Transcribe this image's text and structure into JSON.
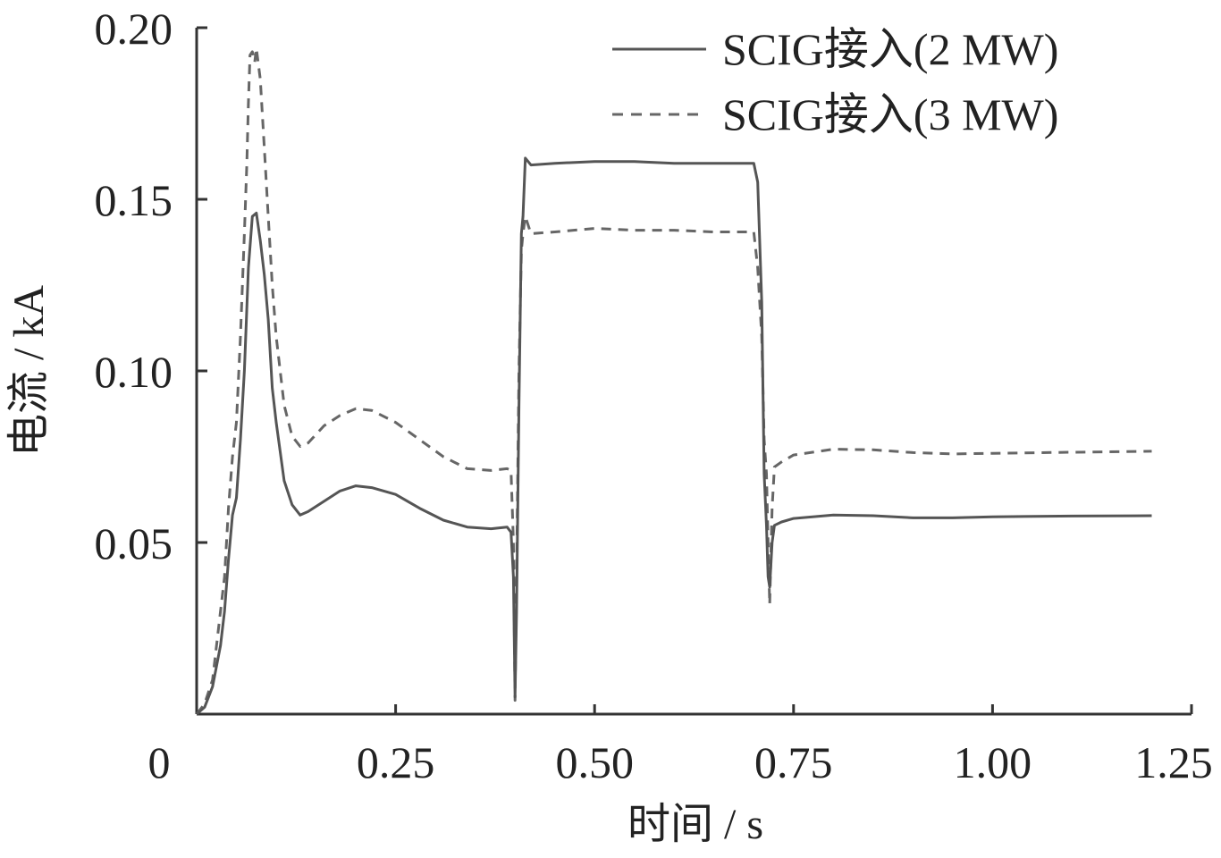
{
  "chart_data": {
    "type": "line",
    "xlabel": "时间 / s",
    "ylabel": "电流 / kA",
    "xlim": [
      0,
      1.25
    ],
    "ylim": [
      0,
      0.2
    ],
    "xticks": [
      0,
      0.25,
      0.5,
      0.75,
      1.0,
      1.25
    ],
    "xtick_labels": [
      "0",
      "0.25",
      "0.50",
      "0.75",
      "1.00",
      "1.25"
    ],
    "yticks": [
      0.05,
      0.1,
      0.15,
      0.2
    ],
    "ytick_labels": [
      "0.05",
      "0.10",
      "0.15",
      "0.20"
    ],
    "grid": false,
    "legend_position": "top-right",
    "series": [
      {
        "name": "SCIG接入(2 MW)",
        "style": "solid",
        "color": "#555555",
        "points": [
          [
            0.0,
            0.0
          ],
          [
            0.01,
            0.002
          ],
          [
            0.02,
            0.008
          ],
          [
            0.03,
            0.02
          ],
          [
            0.035,
            0.03
          ],
          [
            0.04,
            0.045
          ],
          [
            0.045,
            0.058
          ],
          [
            0.05,
            0.063
          ],
          [
            0.055,
            0.08
          ],
          [
            0.06,
            0.1
          ],
          [
            0.065,
            0.13
          ],
          [
            0.07,
            0.145
          ],
          [
            0.075,
            0.146
          ],
          [
            0.08,
            0.138
          ],
          [
            0.085,
            0.128
          ],
          [
            0.09,
            0.115
          ],
          [
            0.095,
            0.095
          ],
          [
            0.1,
            0.085
          ],
          [
            0.11,
            0.068
          ],
          [
            0.12,
            0.061
          ],
          [
            0.13,
            0.058
          ],
          [
            0.14,
            0.059
          ],
          [
            0.16,
            0.062
          ],
          [
            0.18,
            0.065
          ],
          [
            0.2,
            0.0665
          ],
          [
            0.22,
            0.066
          ],
          [
            0.25,
            0.064
          ],
          [
            0.28,
            0.06
          ],
          [
            0.31,
            0.0565
          ],
          [
            0.34,
            0.0545
          ],
          [
            0.37,
            0.054
          ],
          [
            0.39,
            0.0545
          ],
          [
            0.395,
            0.053
          ],
          [
            0.398,
            0.04
          ],
          [
            0.4,
            0.005
          ],
          [
            0.402,
            0.03
          ],
          [
            0.405,
            0.09
          ],
          [
            0.408,
            0.14
          ],
          [
            0.41,
            0.145
          ],
          [
            0.413,
            0.162
          ],
          [
            0.42,
            0.16
          ],
          [
            0.45,
            0.1605
          ],
          [
            0.5,
            0.161
          ],
          [
            0.55,
            0.161
          ],
          [
            0.6,
            0.1605
          ],
          [
            0.65,
            0.1605
          ],
          [
            0.7,
            0.1605
          ],
          [
            0.705,
            0.155
          ],
          [
            0.71,
            0.12
          ],
          [
            0.713,
            0.07
          ],
          [
            0.716,
            0.055
          ],
          [
            0.718,
            0.04
          ],
          [
            0.72,
            0.037
          ],
          [
            0.723,
            0.05
          ],
          [
            0.726,
            0.055
          ],
          [
            0.735,
            0.056
          ],
          [
            0.75,
            0.057
          ],
          [
            0.8,
            0.058
          ],
          [
            0.85,
            0.0578
          ],
          [
            0.9,
            0.0572
          ],
          [
            0.95,
            0.0572
          ],
          [
            1.0,
            0.0575
          ],
          [
            1.1,
            0.0577
          ],
          [
            1.2,
            0.0578
          ]
        ]
      },
      {
        "name": "SCIG接入(3 MW)",
        "style": "dashed",
        "color": "#666666",
        "points": [
          [
            0.0,
            0.0
          ],
          [
            0.01,
            0.003
          ],
          [
            0.02,
            0.01
          ],
          [
            0.03,
            0.03
          ],
          [
            0.035,
            0.04
          ],
          [
            0.04,
            0.06
          ],
          [
            0.045,
            0.075
          ],
          [
            0.05,
            0.085
          ],
          [
            0.055,
            0.11
          ],
          [
            0.06,
            0.14
          ],
          [
            0.063,
            0.16
          ],
          [
            0.065,
            0.178
          ],
          [
            0.067,
            0.192
          ],
          [
            0.07,
            0.193
          ],
          [
            0.073,
            0.19
          ],
          [
            0.075,
            0.194
          ],
          [
            0.08,
            0.185
          ],
          [
            0.085,
            0.165
          ],
          [
            0.09,
            0.145
          ],
          [
            0.095,
            0.125
          ],
          [
            0.1,
            0.11
          ],
          [
            0.11,
            0.09
          ],
          [
            0.12,
            0.081
          ],
          [
            0.13,
            0.078
          ],
          [
            0.14,
            0.079
          ],
          [
            0.16,
            0.084
          ],
          [
            0.18,
            0.087
          ],
          [
            0.2,
            0.089
          ],
          [
            0.22,
            0.0885
          ],
          [
            0.25,
            0.085
          ],
          [
            0.28,
            0.08
          ],
          [
            0.31,
            0.075
          ],
          [
            0.34,
            0.0715
          ],
          [
            0.37,
            0.071
          ],
          [
            0.39,
            0.0715
          ],
          [
            0.395,
            0.071
          ],
          [
            0.398,
            0.05
          ],
          [
            0.4,
            0.004
          ],
          [
            0.402,
            0.04
          ],
          [
            0.405,
            0.1
          ],
          [
            0.408,
            0.135
          ],
          [
            0.41,
            0.14
          ],
          [
            0.413,
            0.145
          ],
          [
            0.42,
            0.14
          ],
          [
            0.45,
            0.1405
          ],
          [
            0.5,
            0.1415
          ],
          [
            0.55,
            0.141
          ],
          [
            0.6,
            0.141
          ],
          [
            0.65,
            0.1405
          ],
          [
            0.7,
            0.1405
          ],
          [
            0.705,
            0.13
          ],
          [
            0.71,
            0.11
          ],
          [
            0.713,
            0.08
          ],
          [
            0.716,
            0.07
          ],
          [
            0.718,
            0.05
          ],
          [
            0.72,
            0.032
          ],
          [
            0.723,
            0.06
          ],
          [
            0.726,
            0.072
          ],
          [
            0.735,
            0.0735
          ],
          [
            0.75,
            0.0755
          ],
          [
            0.8,
            0.0772
          ],
          [
            0.85,
            0.077
          ],
          [
            0.9,
            0.0762
          ],
          [
            0.95,
            0.0758
          ],
          [
            1.0,
            0.076
          ],
          [
            1.1,
            0.0763
          ],
          [
            1.2,
            0.0766
          ]
        ]
      }
    ]
  }
}
